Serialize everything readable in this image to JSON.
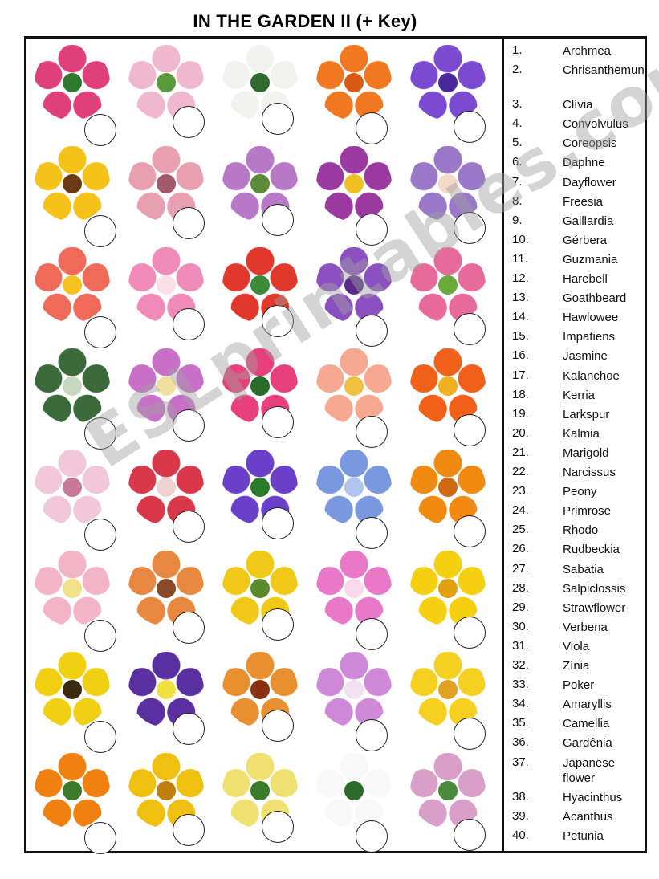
{
  "worksheet": {
    "title": "IN THE GARDEN  II (+ Key)",
    "watermark": "ESLprintables.com"
  },
  "flowers": [
    {
      "icon": "bromeliad-flower-icon",
      "petal": "#e0407a",
      "center": "#2f7a2f"
    },
    {
      "icon": "kalanchoe-flower-icon",
      "petal": "#f0b8cc",
      "center": "#5a9a3a"
    },
    {
      "icon": "gardenia-flower-icon",
      "petal": "#f2f2ee",
      "center": "#2e6a2e"
    },
    {
      "icon": "zinnia-flower-icon",
      "petal": "#f07820",
      "center": "#d85a10"
    },
    {
      "icon": "harebell-flower-icon",
      "petal": "#7a4ad0",
      "center": "#4a2a9a"
    },
    {
      "icon": "rudbeckia-flower-icon",
      "petal": "#f5c21a",
      "center": "#6a3a10"
    },
    {
      "icon": "poker-flower-icon",
      "petal": "#e8a0b0",
      "center": "#a05a6a"
    },
    {
      "icon": "larkspur-flower-icon",
      "petal": "#b878c8",
      "center": "#5a8a3a"
    },
    {
      "icon": "alstroemeria-flower-icon",
      "petal": "#9a3aa0",
      "center": "#f0c020"
    },
    {
      "icon": "peony-flower-icon",
      "petal": "#9a78c8",
      "center": "#f4d8c8"
    },
    {
      "icon": "primrose-flower-icon",
      "petal": "#f06a5a",
      "center": "#f5c220"
    },
    {
      "icon": "petunia-flower-icon",
      "petal": "#f08ab8",
      "center": "#fbe0ea"
    },
    {
      "icon": "guzmania-flower-icon",
      "petal": "#e0382a",
      "center": "#3a8a3a"
    },
    {
      "icon": "verbena-purple-flower-icon",
      "petal": "#8a50c0",
      "center": "#5a2a8a"
    },
    {
      "icon": "sabatia-flower-icon",
      "petal": "#e86a9a",
      "center": "#6aaa3a"
    },
    {
      "icon": "acanthus-flower-icon",
      "petal": "#3a6a3a",
      "center": "#c8d8c0"
    },
    {
      "icon": "impatiens-flower-icon",
      "petal": "#c870c8",
      "center": "#f0e0a0"
    },
    {
      "icon": "vinca-flower-icon",
      "petal": "#e8407a",
      "center": "#2a6a2a"
    },
    {
      "icon": "gerbera-flower-icon",
      "petal": "#f7a890",
      "center": "#f0c040"
    },
    {
      "icon": "clivia-flower-icon",
      "petal": "#f06018",
      "center": "#f0b020"
    },
    {
      "icon": "rhododendron-flower-icon",
      "petal": "#f0c8d8",
      "center": "#c87898"
    },
    {
      "icon": "amaryllis-flower-icon",
      "petal": "#d8384a",
      "center": "#f0d0d0"
    },
    {
      "icon": "dayflower-flower-icon",
      "petal": "#6a40c8",
      "center": "#2a7a2a"
    },
    {
      "icon": "hydrangea-flower-icon",
      "petal": "#7a98e0",
      "center": "#b0c4f0"
    },
    {
      "icon": "coreopsis-flower-icon",
      "petal": "#f08a10",
      "center": "#d06a10"
    },
    {
      "icon": "camellia-flower-icon",
      "petal": "#f4b4c8",
      "center": "#f0e08a"
    },
    {
      "icon": "lily-flower-icon",
      "petal": "#e88840",
      "center": "#8a4a2a"
    },
    {
      "icon": "jasmine-yellow-flower-icon",
      "petal": "#f0c818",
      "center": "#5a8a2a"
    },
    {
      "icon": "verbena-pink-flower-icon",
      "petal": "#e878c8",
      "center": "#f8d8ea"
    },
    {
      "icon": "kerria-flower-icon",
      "petal": "#f5d010",
      "center": "#e0a010"
    },
    {
      "icon": "sunflower-flower-icon",
      "petal": "#f0d010",
      "center": "#3a2a10"
    },
    {
      "icon": "viola-flower-icon",
      "petal": "#5a30a0",
      "center": "#f0e040"
    },
    {
      "icon": "gaillardia-flower-icon",
      "petal": "#e89030",
      "center": "#8a3010"
    },
    {
      "icon": "convolvulus-flower-icon",
      "petal": "#d088d8",
      "center": "#f0e0f0"
    },
    {
      "icon": "strawflower-flower-icon",
      "petal": "#f5d020",
      "center": "#e0a020"
    },
    {
      "icon": "marigold-flower-icon",
      "petal": "#f08010",
      "center": "#3a7a2a"
    },
    {
      "icon": "chrysanthemum-flower-icon",
      "petal": "#f0c010",
      "center": "#c08010"
    },
    {
      "icon": "freesia-flower-icon",
      "petal": "#f0e070",
      "center": "#3a7a2a"
    },
    {
      "icon": "narcissus-flower-icon",
      "petal": "#f8f8f8",
      "center": "#2a6a2a"
    },
    {
      "icon": "hyacinth-flower-icon",
      "petal": "#d8a0c8",
      "center": "#4a8a3a"
    }
  ],
  "key": [
    {
      "num": "1.",
      "name": "Archmea"
    },
    {
      "num": "2.",
      "name": "Chrisanthemun"
    },
    {
      "num": "3.",
      "name": "Clívia"
    },
    {
      "num": "4.",
      "name": "Convolvulus"
    },
    {
      "num": "5.",
      "name": "Coreopsis"
    },
    {
      "num": "6.",
      "name": "Daphne"
    },
    {
      "num": "7.",
      "name": "Dayflower"
    },
    {
      "num": "8.",
      "name": "Freesia"
    },
    {
      "num": "9.",
      "name": "Gaillardia"
    },
    {
      "num": "10.",
      "name": "Gérbera"
    },
    {
      "num": "11.",
      "name": "Guzmania"
    },
    {
      "num": "12.",
      "name": "Harebell"
    },
    {
      "num": "13.",
      "name": "Goathbeard"
    },
    {
      "num": "14.",
      "name": "Hawlowee"
    },
    {
      "num": "15.",
      "name": "Impatiens"
    },
    {
      "num": "16.",
      "name": "Jasmine"
    },
    {
      "num": "17.",
      "name": "Kalanchoe"
    },
    {
      "num": "18.",
      "name": "Kerria"
    },
    {
      "num": "19.",
      "name": "Larkspur"
    },
    {
      "num": "20.",
      "name": "Kalmia"
    },
    {
      "num": "21.",
      "name": "Marigold"
    },
    {
      "num": "22.",
      "name": "Narcissus"
    },
    {
      "num": "23.",
      "name": "Peony"
    },
    {
      "num": "24.",
      "name": "Primrose"
    },
    {
      "num": "25.",
      "name": "Rhodo"
    },
    {
      "num": "26.",
      "name": "Rudbeckia"
    },
    {
      "num": "27.",
      "name": "Sabatia"
    },
    {
      "num": "28.",
      "name": "Salpiclossis"
    },
    {
      "num": "29.",
      "name": "Strawflower"
    },
    {
      "num": "30.",
      "name": "Verbena"
    },
    {
      "num": "31.",
      "name": "Viola"
    },
    {
      "num": "32.",
      "name": "Zínia"
    },
    {
      "num": "33.",
      "name": "Poker"
    },
    {
      "num": "34.",
      "name": "Amaryllis"
    },
    {
      "num": "35.",
      "name": "Camellia"
    },
    {
      "num": "36.",
      "name": "Gardênia"
    },
    {
      "num": "37.",
      "name": "Japanese flower"
    },
    {
      "num": "38.",
      "name": "Hyacinthus"
    },
    {
      "num": "39.",
      "name": "Acanthus"
    },
    {
      "num": "40.",
      "name": "Petunia"
    }
  ]
}
